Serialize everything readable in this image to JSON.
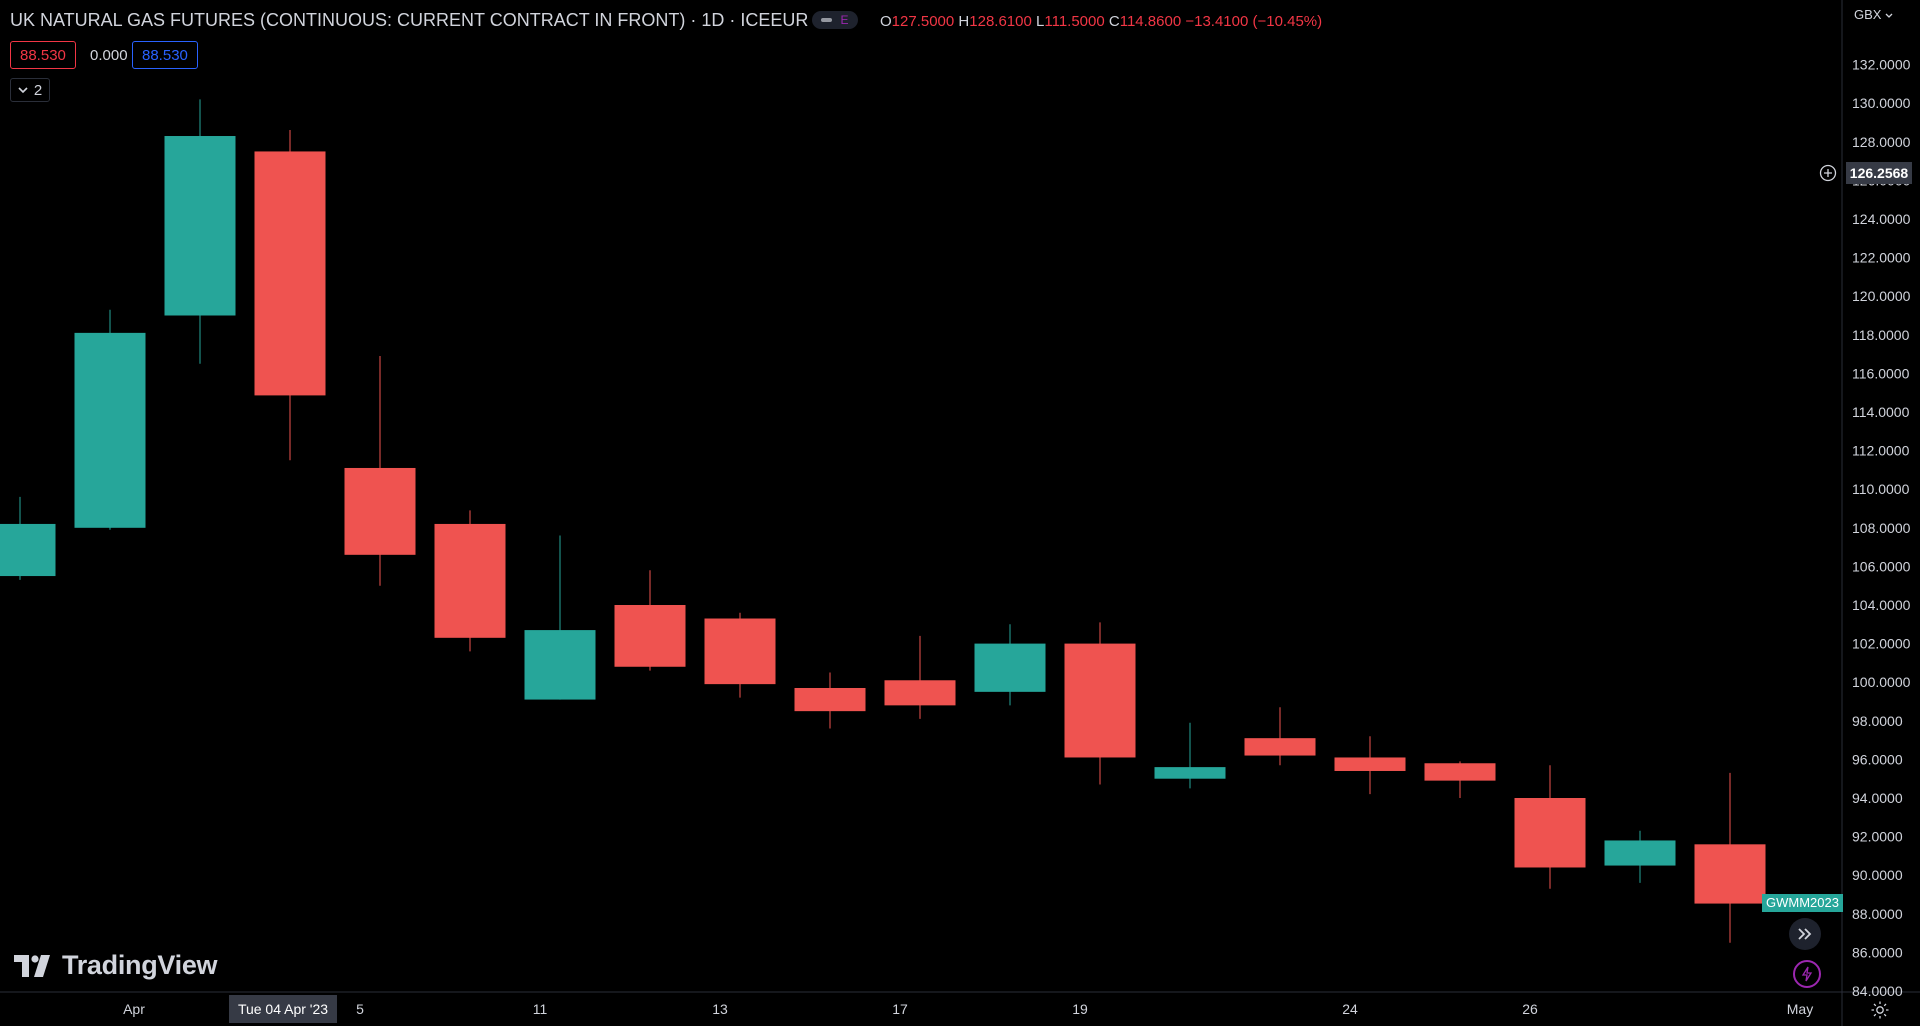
{
  "header": {
    "title": "UK NATURAL GAS FUTURES (CONTINUOUS: CURRENT CONTRACT IN FRONT) · 1D · ICEEUR",
    "toggle_badge": "E",
    "ohlc": {
      "o_label": "O",
      "o_value": "127.5000",
      "h_label": "H",
      "h_value": "128.6100",
      "l_label": "L",
      "l_value": "111.5000",
      "c_label": "C",
      "c_value": "114.8600",
      "change": "−13.4100 (−10.45%)"
    },
    "chip_red": "88.530",
    "chip_plain": "0.000",
    "chip_blue": "88.530",
    "collapse_count": "2",
    "currency": "GBX"
  },
  "branding": {
    "logo_text": "TradingView"
  },
  "crosshair": {
    "price_label": "126.2568",
    "date_label": "Tue 04 Apr '23"
  },
  "symbol_tag": "GWMM2023",
  "colors": {
    "up": "#26a69a",
    "down": "#ef5350",
    "background": "#000000",
    "axis_text": "#d1d4dc",
    "grid_line": "#2a2e39"
  },
  "chart_data": {
    "type": "candlestick",
    "ylim": [
      84,
      133
    ],
    "y_ticks": [
      "84.0000",
      "86.0000",
      "88.0000",
      "90.0000",
      "92.0000",
      "94.0000",
      "96.0000",
      "98.0000",
      "100.0000",
      "102.0000",
      "104.0000",
      "106.0000",
      "108.0000",
      "110.0000",
      "112.0000",
      "114.0000",
      "116.0000",
      "118.0000",
      "120.0000",
      "122.0000",
      "124.0000",
      "126.0000",
      "128.0000",
      "130.0000",
      "132.0000"
    ],
    "x_ticks": [
      {
        "label": "Apr",
        "index": 1.5
      },
      {
        "label": "5",
        "index": 4
      },
      {
        "label": "11",
        "index": 6
      },
      {
        "label": "13",
        "index": 8
      },
      {
        "label": "17",
        "index": 10
      },
      {
        "label": "19",
        "index": 12
      },
      {
        "label": "24",
        "index": 15
      },
      {
        "label": "26",
        "index": 17
      },
      {
        "label": "May",
        "index": 20
      }
    ],
    "candles": [
      {
        "open": 105.5,
        "high": 109.6,
        "low": 105.3,
        "close": 108.2
      },
      {
        "open": 108.0,
        "high": 119.3,
        "low": 107.9,
        "close": 118.1
      },
      {
        "open": 119.0,
        "high": 130.2,
        "low": 116.5,
        "close": 128.3
      },
      {
        "open": 127.5,
        "high": 128.61,
        "low": 111.5,
        "close": 114.86
      },
      {
        "open": 111.1,
        "high": 116.9,
        "low": 105.0,
        "close": 106.6
      },
      {
        "open": 108.2,
        "high": 108.9,
        "low": 101.6,
        "close": 102.3
      },
      {
        "open": 99.1,
        "high": 107.6,
        "low": 99.1,
        "close": 102.7
      },
      {
        "open": 104.0,
        "high": 105.8,
        "low": 100.6,
        "close": 100.8
      },
      {
        "open": 103.3,
        "high": 103.6,
        "low": 99.2,
        "close": 99.9
      },
      {
        "open": 99.7,
        "high": 100.5,
        "low": 97.6,
        "close": 98.5
      },
      {
        "open": 100.1,
        "high": 102.4,
        "low": 98.1,
        "close": 98.8
      },
      {
        "open": 99.5,
        "high": 103.0,
        "low": 98.8,
        "close": 102.0
      },
      {
        "open": 102.0,
        "high": 103.1,
        "low": 94.7,
        "close": 96.1
      },
      {
        "open": 95.0,
        "high": 97.9,
        "low": 94.5,
        "close": 95.6
      },
      {
        "open": 97.1,
        "high": 98.7,
        "low": 95.7,
        "close": 96.2
      },
      {
        "open": 96.1,
        "high": 97.2,
        "low": 94.2,
        "close": 95.4
      },
      {
        "open": 95.8,
        "high": 95.9,
        "low": 94.0,
        "close": 94.9
      },
      {
        "open": 94.0,
        "high": 95.7,
        "low": 89.3,
        "close": 90.4
      },
      {
        "open": 90.5,
        "high": 92.3,
        "low": 89.6,
        "close": 91.8
      },
      {
        "open": 91.6,
        "high": 95.3,
        "low": 86.5,
        "close": 88.53
      }
    ]
  }
}
